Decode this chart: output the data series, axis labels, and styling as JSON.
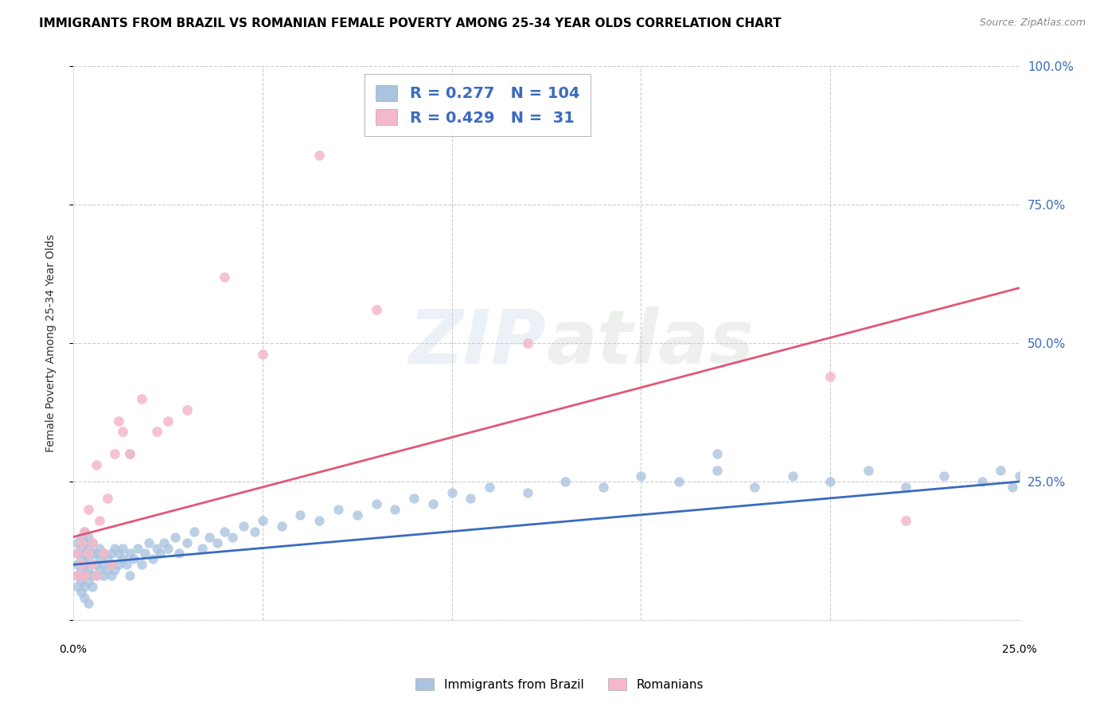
{
  "title": "IMMIGRANTS FROM BRAZIL VS ROMANIAN FEMALE POVERTY AMONG 25-34 YEAR OLDS CORRELATION CHART",
  "source": "Source: ZipAtlas.com",
  "ylabel": "Female Poverty Among 25-34 Year Olds",
  "xlim": [
    0.0,
    0.25
  ],
  "ylim": [
    0.0,
    1.0
  ],
  "brazil_color": "#aac4df",
  "brazil_line_color": "#3a6bbf",
  "romanian_color": "#f5b8c8",
  "romanian_line_color": "#e05878",
  "brazil_R": 0.277,
  "brazil_N": 104,
  "romanian_R": 0.429,
  "romanian_N": 31,
  "legend_text_color": "#3a6bbf",
  "brazil_line_x0": 0.0,
  "brazil_line_y0": 0.1,
  "brazil_line_x1": 0.25,
  "brazil_line_y1": 0.25,
  "romanian_line_x0": 0.0,
  "romanian_line_y0": 0.15,
  "romanian_line_x1": 0.25,
  "romanian_line_y1": 0.6,
  "brazil_x": [
    0.001,
    0.001,
    0.001,
    0.001,
    0.001,
    0.002,
    0.002,
    0.002,
    0.002,
    0.002,
    0.002,
    0.002,
    0.003,
    0.003,
    0.003,
    0.003,
    0.003,
    0.003,
    0.004,
    0.004,
    0.004,
    0.004,
    0.004,
    0.005,
    0.005,
    0.005,
    0.005,
    0.006,
    0.006,
    0.006,
    0.007,
    0.007,
    0.007,
    0.008,
    0.008,
    0.008,
    0.009,
    0.009,
    0.01,
    0.01,
    0.01,
    0.011,
    0.011,
    0.012,
    0.012,
    0.013,
    0.013,
    0.014,
    0.015,
    0.015,
    0.016,
    0.017,
    0.018,
    0.019,
    0.02,
    0.021,
    0.022,
    0.023,
    0.024,
    0.025,
    0.027,
    0.028,
    0.03,
    0.032,
    0.034,
    0.036,
    0.038,
    0.04,
    0.042,
    0.045,
    0.048,
    0.05,
    0.055,
    0.06,
    0.065,
    0.07,
    0.075,
    0.08,
    0.085,
    0.09,
    0.095,
    0.1,
    0.105,
    0.11,
    0.12,
    0.13,
    0.14,
    0.15,
    0.16,
    0.17,
    0.18,
    0.19,
    0.2,
    0.21,
    0.22,
    0.23,
    0.24,
    0.245,
    0.248,
    0.25,
    0.003,
    0.004,
    0.015,
    0.17
  ],
  "brazil_y": [
    0.12,
    0.08,
    0.1,
    0.06,
    0.14,
    0.09,
    0.11,
    0.07,
    0.13,
    0.15,
    0.05,
    0.1,
    0.08,
    0.12,
    0.06,
    0.14,
    0.1,
    0.16,
    0.09,
    0.11,
    0.07,
    0.13,
    0.15,
    0.08,
    0.12,
    0.06,
    0.14,
    0.1,
    0.08,
    0.12,
    0.09,
    0.11,
    0.13,
    0.08,
    0.12,
    0.1,
    0.09,
    0.11,
    0.08,
    0.12,
    0.1,
    0.09,
    0.13,
    0.1,
    0.12,
    0.11,
    0.13,
    0.1,
    0.08,
    0.12,
    0.11,
    0.13,
    0.1,
    0.12,
    0.14,
    0.11,
    0.13,
    0.12,
    0.14,
    0.13,
    0.15,
    0.12,
    0.14,
    0.16,
    0.13,
    0.15,
    0.14,
    0.16,
    0.15,
    0.17,
    0.16,
    0.18,
    0.17,
    0.19,
    0.18,
    0.2,
    0.19,
    0.21,
    0.2,
    0.22,
    0.21,
    0.23,
    0.22,
    0.24,
    0.23,
    0.25,
    0.24,
    0.26,
    0.25,
    0.27,
    0.24,
    0.26,
    0.25,
    0.27,
    0.24,
    0.26,
    0.25,
    0.27,
    0.24,
    0.26,
    0.04,
    0.03,
    0.3,
    0.3
  ],
  "romanian_x": [
    0.001,
    0.001,
    0.002,
    0.002,
    0.003,
    0.003,
    0.004,
    0.004,
    0.005,
    0.005,
    0.006,
    0.006,
    0.007,
    0.008,
    0.009,
    0.01,
    0.011,
    0.012,
    0.013,
    0.015,
    0.018,
    0.022,
    0.025,
    0.03,
    0.04,
    0.05,
    0.065,
    0.08,
    0.12,
    0.2,
    0.22
  ],
  "romanian_y": [
    0.12,
    0.08,
    0.14,
    0.1,
    0.16,
    0.08,
    0.12,
    0.2,
    0.1,
    0.14,
    0.08,
    0.28,
    0.18,
    0.12,
    0.22,
    0.1,
    0.3,
    0.36,
    0.34,
    0.3,
    0.4,
    0.34,
    0.36,
    0.38,
    0.62,
    0.48,
    0.84,
    0.56,
    0.5,
    0.44,
    0.18
  ]
}
